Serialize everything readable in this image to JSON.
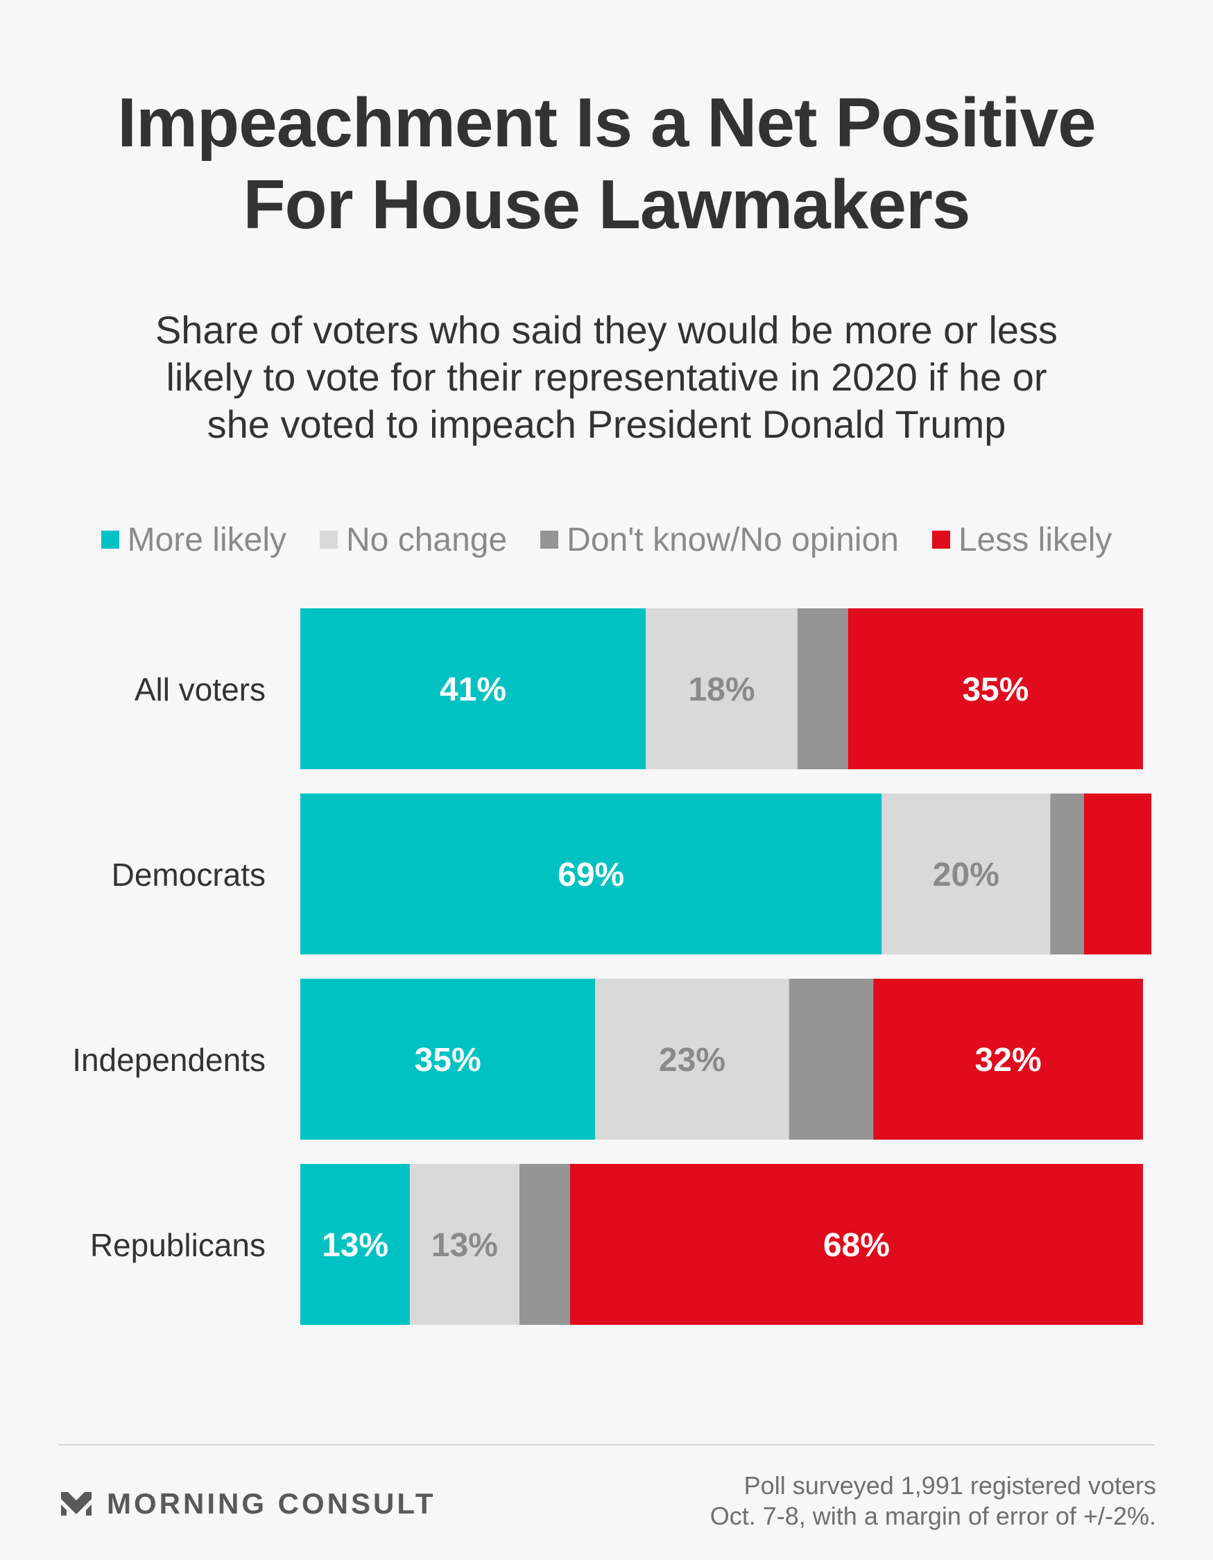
{
  "title_line1": "Impeachment Is a Net Positive",
  "title_line2": "For House Lawmakers",
  "subtitle_line1": "Share of voters who said they would be more or less",
  "subtitle_line2": "likely to vote for their representative in 2020 if he or",
  "subtitle_line3": "she voted to impeach President Donald Trump",
  "legend": [
    {
      "label": "More likely",
      "color": "#00c2c2"
    },
    {
      "label": "No change",
      "color": "#d9d9d9"
    },
    {
      "label": "Don't know/No opinion",
      "color": "#959595"
    },
    {
      "label": "Less likely",
      "color": "#e00b1c"
    }
  ],
  "chart_data": {
    "type": "bar",
    "stacked": true,
    "orientation": "horizontal",
    "normalized_to": 100,
    "categories": [
      "All voters",
      "Democrats",
      "Independents",
      "Republicans"
    ],
    "series": [
      {
        "name": "More likely",
        "color": "#00c2c2",
        "label_color": "#ffffff",
        "values": [
          41,
          69,
          35,
          13
        ],
        "labels": [
          "41%",
          "69%",
          "35%",
          "13%"
        ]
      },
      {
        "name": "No change",
        "color": "#d9d9d9",
        "label_color": "#8a8a8a",
        "values": [
          18,
          20,
          23,
          13
        ],
        "labels": [
          "18%",
          "20%",
          "23%",
          "13%"
        ]
      },
      {
        "name": "Don't know/No opinion",
        "color": "#959595",
        "label_color": "#ffffff",
        "values": [
          6,
          4,
          10,
          6
        ],
        "labels": [
          "",
          "",
          "",
          ""
        ]
      },
      {
        "name": "Less likely",
        "color": "#e00b1c",
        "label_color": "#ffffff",
        "values": [
          35,
          8,
          32,
          68
        ],
        "labels": [
          "35%",
          "",
          "32%",
          "68%"
        ]
      }
    ]
  },
  "brand_name": "MORNING CONSULT",
  "source_line1": "Poll surveyed 1,991 registered voters",
  "source_line2": "Oct. 7-8, with a margin of error of +/-2%."
}
